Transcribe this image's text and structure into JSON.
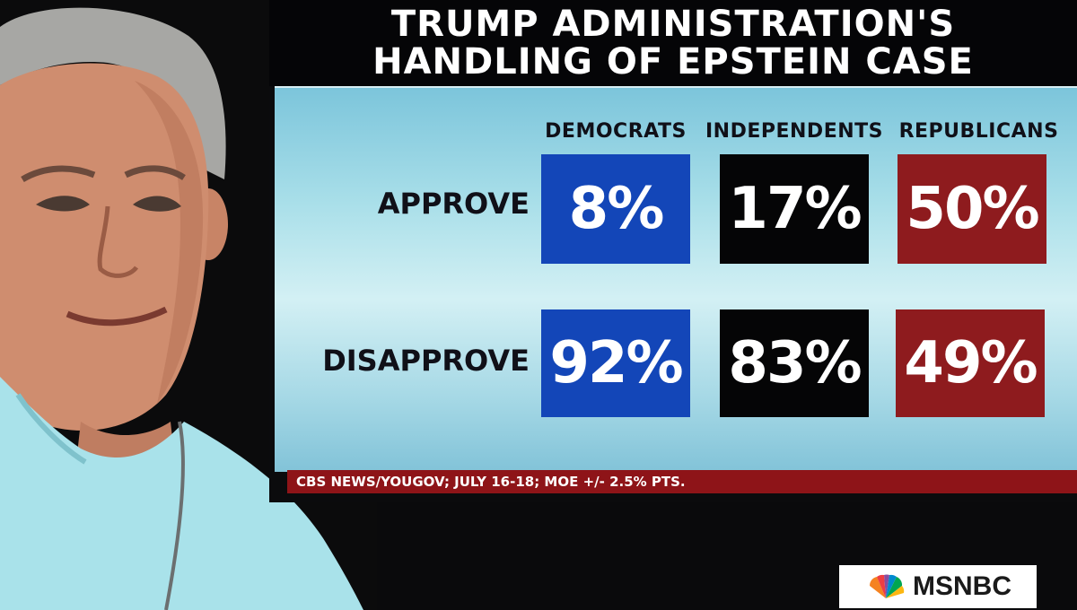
{
  "title": {
    "line1": "TRUMP ADMINISTRATION'S",
    "line2": "HANDLING OF EPSTEIN CASE"
  },
  "source": "CBS NEWS/YOUGOV; JULY 16-18; MOE +/- 2.5% PTS.",
  "logo": {
    "text": "MSNBC",
    "icon": "peacock-icon"
  },
  "colors": {
    "democrats": "#1346b8",
    "independents": "#050506",
    "republicans": "#8e1b1e",
    "source_bar": "#8e1418"
  },
  "chart_data": {
    "type": "table",
    "title": "TRUMP ADMINISTRATION'S HANDLING OF EPSTEIN CASE",
    "columns": [
      "DEMOCRATS",
      "INDEPENDENTS",
      "REPUBLICANS"
    ],
    "rows": [
      {
        "label": "APPROVE",
        "values": [
          8,
          17,
          50
        ],
        "display": [
          "8%",
          "17%",
          "50%"
        ]
      },
      {
        "label": "DISAPPROVE",
        "values": [
          92,
          83,
          49
        ],
        "display": [
          "92%",
          "83%",
          "49%"
        ]
      }
    ],
    "unit": "%"
  }
}
